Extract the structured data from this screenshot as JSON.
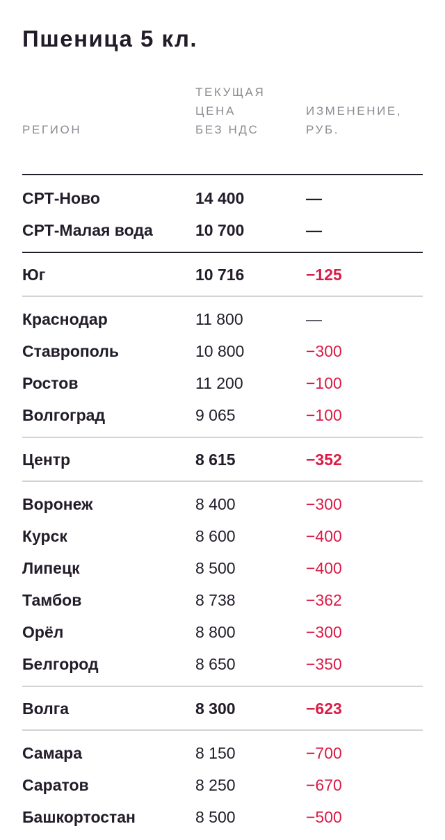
{
  "title": "Пшеница 5 кл.",
  "headers": {
    "region": [
      "РЕГИОН"
    ],
    "price": [
      "ТЕКУЩАЯ",
      "ЦЕНА",
      "БЕЗ НДС"
    ],
    "change": [
      "ИЗМЕНЕНИЕ,",
      "РУБ."
    ]
  },
  "groups": [
    {
      "kind": "first",
      "rows": [
        {
          "region": "СРТ-Ново",
          "price": "14 400",
          "change": "—",
          "bold": true,
          "negative": false
        },
        {
          "region": "СРТ-Малая вода",
          "price": "10 700",
          "change": "—",
          "bold": true,
          "negative": false
        }
      ]
    },
    {
      "kind": "highlight",
      "rows": [
        {
          "region": "Юг",
          "price": "10 716",
          "change": "−125",
          "bold": true,
          "negative": true
        }
      ]
    },
    {
      "kind": "sub",
      "rows": [
        {
          "region": "Краснодар",
          "price": "11 800",
          "change": "—",
          "bold": false,
          "negative": false
        },
        {
          "region": "Ставрополь",
          "price": "10 800",
          "change": "−300",
          "bold": false,
          "negative": true
        },
        {
          "region": "Ростов",
          "price": "11 200",
          "change": "−100",
          "bold": false,
          "negative": true
        },
        {
          "region": "Волгоград",
          "price": "9 065",
          "change": "−100",
          "bold": false,
          "negative": true
        }
      ]
    },
    {
      "kind": "highlight",
      "rows": [
        {
          "region": "Центр",
          "price": "8 615",
          "change": "−352",
          "bold": true,
          "negative": true
        }
      ]
    },
    {
      "kind": "sub",
      "rows": [
        {
          "region": "Воронеж",
          "price": "8 400",
          "change": "−300",
          "bold": false,
          "negative": true
        },
        {
          "region": "Курск",
          "price": "8 600",
          "change": "−400",
          "bold": false,
          "negative": true
        },
        {
          "region": "Липецк",
          "price": "8 500",
          "change": "−400",
          "bold": false,
          "negative": true
        },
        {
          "region": "Тамбов",
          "price": "8 738",
          "change": "−362",
          "bold": false,
          "negative": true
        },
        {
          "region": "Орёл",
          "price": "8 800",
          "change": "−300",
          "bold": false,
          "negative": true
        },
        {
          "region": "Белгород",
          "price": "8 650",
          "change": "−350",
          "bold": false,
          "negative": true
        }
      ]
    },
    {
      "kind": "highlight",
      "rows": [
        {
          "region": "Волга",
          "price": "8 300",
          "change": "−623",
          "bold": true,
          "negative": true
        }
      ]
    },
    {
      "kind": "sub",
      "rows": [
        {
          "region": "Самара",
          "price": "8 150",
          "change": "−700",
          "bold": false,
          "negative": true
        },
        {
          "region": "Саратов",
          "price": "8 250",
          "change": "−670",
          "bold": false,
          "negative": true
        },
        {
          "region": "Башкортостан",
          "price": "8 500",
          "change": "−500",
          "bold": false,
          "negative": true
        }
      ]
    }
  ],
  "colors": {
    "text": "#221c29",
    "header": "#8d8a92",
    "negative": "#d91c47",
    "rule_thick": "#221c29",
    "rule_thin": "#d4d2d6"
  }
}
